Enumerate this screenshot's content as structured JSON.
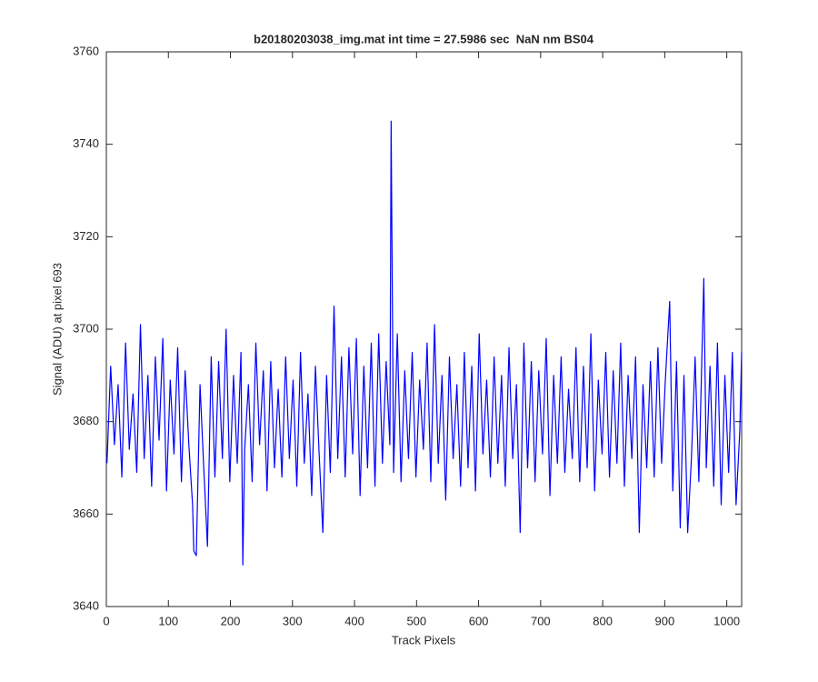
{
  "chart_data": {
    "type": "line",
    "title": "b20180203038_img.mat int time = 27.5986 sec  NaN nm BS04",
    "x_label": "Track Pixels",
    "y_label": "Signal (ADU) at pixel 693",
    "xlim": [
      0,
      1024
    ],
    "xticks": [
      0,
      100,
      200,
      300,
      400,
      500,
      600,
      700,
      800,
      900,
      1000
    ],
    "ylim": [
      3640,
      3760
    ],
    "yticks": [
      3640,
      3660,
      3680,
      3700,
      3720,
      3740,
      3760
    ],
    "grid": false,
    "series": [
      {
        "color": "#0000ff",
        "x": [
          1,
          7,
          13,
          19,
          25,
          31,
          37,
          43,
          49,
          55,
          61,
          67,
          73,
          79,
          85,
          91,
          97,
          103,
          109,
          115,
          121,
          127,
          133,
          139,
          141,
          145,
          151,
          157,
          163,
          169,
          175,
          181,
          187,
          193,
          199,
          205,
          211,
          217,
          220,
          223,
          229,
          235,
          241,
          247,
          253,
          259,
          265,
          271,
          277,
          283,
          289,
          295,
          301,
          307,
          313,
          319,
          325,
          331,
          337,
          343,
          349,
          355,
          361,
          367,
          373,
          379,
          385,
          391,
          397,
          403,
          409,
          415,
          421,
          427,
          433,
          439,
          445,
          451,
          457,
          459,
          463,
          469,
          475,
          481,
          487,
          493,
          499,
          505,
          511,
          517,
          523,
          529,
          535,
          541,
          547,
          553,
          559,
          565,
          571,
          577,
          583,
          589,
          595,
          601,
          607,
          613,
          619,
          625,
          631,
          637,
          643,
          649,
          655,
          661,
          667,
          673,
          679,
          685,
          691,
          697,
          703,
          709,
          715,
          721,
          727,
          733,
          739,
          745,
          751,
          757,
          763,
          769,
          775,
          781,
          787,
          793,
          799,
          805,
          811,
          817,
          823,
          829,
          835,
          841,
          847,
          853,
          859,
          865,
          871,
          877,
          883,
          889,
          895,
          901,
          908,
          913,
          919,
          925,
          931,
          937,
          943,
          949,
          955,
          963,
          967,
          973,
          979,
          985,
          991,
          997,
          1003,
          1009,
          1015,
          1021,
          1024
        ],
        "values": [
          3671,
          3692,
          3675,
          3688,
          3668,
          3697,
          3674,
          3686,
          3669,
          3701,
          3672,
          3690,
          3666,
          3694,
          3676,
          3698,
          3665,
          3689,
          3673,
          3696,
          3667,
          3691,
          3675,
          3662,
          3652,
          3651,
          3688,
          3670,
          3653,
          3694,
          3668,
          3693,
          3672,
          3700,
          3667,
          3690,
          3671,
          3695,
          3649,
          3674,
          3688,
          3667,
          3697,
          3675,
          3691,
          3665,
          3693,
          3670,
          3687,
          3668,
          3694,
          3672,
          3689,
          3666,
          3695,
          3671,
          3686,
          3664,
          3692,
          3673,
          3656,
          3690,
          3669,
          3705,
          3672,
          3694,
          3668,
          3696,
          3673,
          3698,
          3664,
          3692,
          3670,
          3697,
          3666,
          3699,
          3671,
          3693,
          3675,
          3745,
          3669,
          3699,
          3667,
          3691,
          3672,
          3695,
          3668,
          3689,
          3674,
          3697,
          3667,
          3701,
          3671,
          3690,
          3663,
          3694,
          3672,
          3688,
          3666,
          3695,
          3670,
          3692,
          3665,
          3699,
          3673,
          3689,
          3668,
          3694,
          3671,
          3690,
          3666,
          3696,
          3672,
          3688,
          3656,
          3697,
          3670,
          3693,
          3667,
          3691,
          3673,
          3698,
          3664,
          3690,
          3671,
          3694,
          3669,
          3687,
          3672,
          3696,
          3667,
          3692,
          3670,
          3699,
          3665,
          3689,
          3673,
          3695,
          3668,
          3691,
          3671,
          3697,
          3666,
          3690,
          3672,
          3694,
          3656,
          3688,
          3670,
          3693,
          3668,
          3696,
          3671,
          3689,
          3706,
          3665,
          3693,
          3657,
          3690,
          3656,
          3672,
          3694,
          3667,
          3711,
          3670,
          3692,
          3666,
          3697,
          3662,
          3690,
          3669,
          3695,
          3662,
          3678,
          3695
        ]
      }
    ]
  }
}
